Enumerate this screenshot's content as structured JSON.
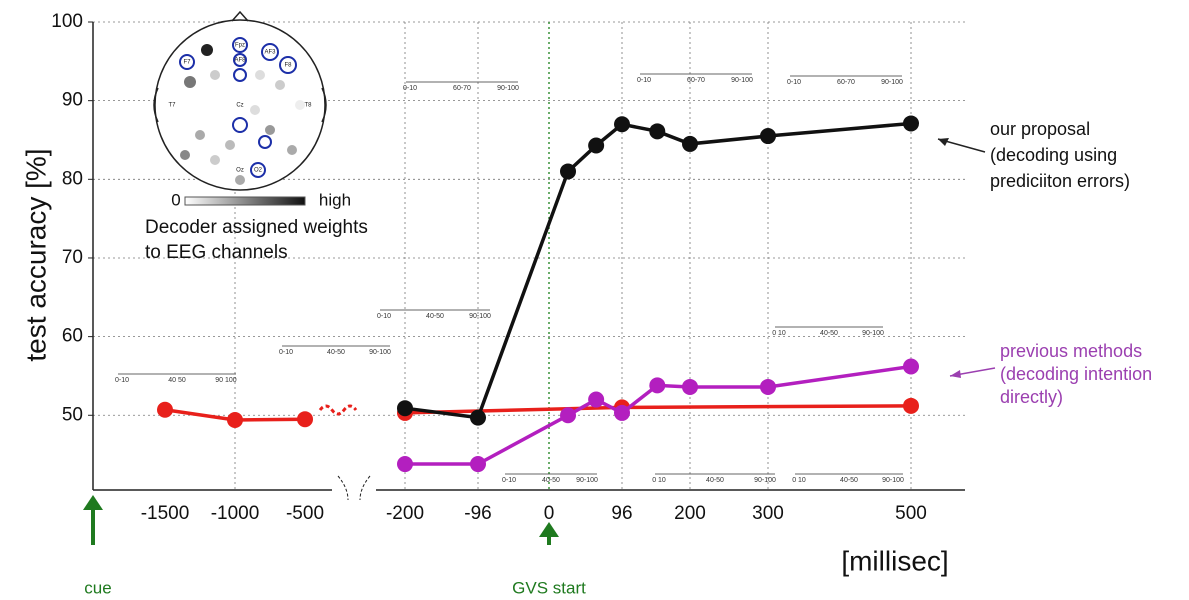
{
  "chart_data": {
    "type": "line",
    "ylabel": "test accuracy [%]",
    "xlabel": "[millisec]",
    "xticks": [
      -1500,
      -1000,
      -500,
      -200,
      -96,
      0,
      96,
      200,
      300,
      500
    ],
    "ylim": [
      40.5,
      100
    ],
    "yticks": [
      50,
      60,
      70,
      80,
      90,
      100
    ],
    "grid": true,
    "series": [
      {
        "color": "#111111",
        "x": [
          -200,
          -96,
          25,
          62,
          96,
          150,
          200,
          300,
          500
        ],
        "values": [
          50.9,
          49.7,
          81,
          84.3,
          87,
          86.1,
          84.5,
          85.5,
          87.1
        ]
      },
      {
        "color": "#b31fbf",
        "x": [
          -200,
          -96,
          25,
          62,
          96,
          150,
          200,
          300,
          500
        ],
        "values": [
          43.8,
          43.8,
          50,
          52,
          50.3,
          53.8,
          53.6,
          53.6,
          56.2
        ]
      },
      {
        "color": "#e8201b",
        "x": [
          -1500,
          -1000,
          -500,
          null,
          -200,
          96,
          500
        ],
        "values": [
          50.7,
          49.4,
          49.5,
          null,
          50.3,
          51,
          51.2
        ]
      }
    ],
    "annotations": [
      {
        "lines": [
          "our proposal",
          "(decoding using",
          "prediciiton errors)"
        ]
      },
      {
        "lines": [
          "previous methods",
          "(decoding intention",
          "directly)"
        ]
      }
    ],
    "events": [
      "cue",
      "GVS start"
    ]
  },
  "colorbar": {
    "min": "0",
    "max": "high",
    "caption": [
      "Decoder assigned weights",
      "to EEG channels"
    ]
  },
  "electrodes": [
    "F7",
    "AF3",
    "Fpz",
    "AF8",
    "F8",
    "T7",
    "Cz",
    "T8",
    "Oz",
    "O2"
  ],
  "insets": [
    [
      "0-10",
      "40 50",
      "90 100"
    ],
    [
      "0-10",
      "40-50",
      "90-100"
    ],
    [
      "0-10",
      "40-50",
      "90-100"
    ],
    [
      "0-10",
      "60-70",
      "90-100"
    ],
    [
      "0-10",
      "60-70",
      "90-100"
    ],
    [
      "0-10",
      "60-70",
      "90-100"
    ],
    [
      "0 10",
      "40-50",
      "90-100"
    ],
    [
      "0-10",
      "40-50",
      "90-100"
    ],
    [
      "0 10",
      "40-50",
      "90-100"
    ],
    [
      "0 10",
      "40-50",
      "90-100"
    ]
  ]
}
